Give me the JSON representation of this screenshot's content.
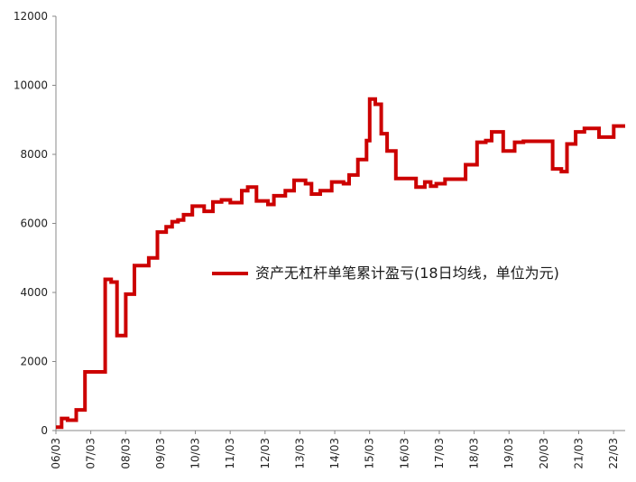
{
  "chart_data": {
    "type": "line",
    "title": "",
    "xlabel": "",
    "ylabel": "",
    "ylim": [
      0,
      12000
    ],
    "xlim": [
      2006.167,
      2022.5
    ],
    "yticks": [
      0,
      2000,
      4000,
      6000,
      8000,
      10000,
      12000
    ],
    "xticks": [
      {
        "label": "06/03",
        "x": 2006.167
      },
      {
        "label": "07/03",
        "x": 2007.167
      },
      {
        "label": "08/03",
        "x": 2008.167
      },
      {
        "label": "09/03",
        "x": 2009.167
      },
      {
        "label": "10/03",
        "x": 2010.167
      },
      {
        "label": "11/03",
        "x": 2011.167
      },
      {
        "label": "12/03",
        "x": 2012.167
      },
      {
        "label": "13/03",
        "x": 2013.167
      },
      {
        "label": "14/03",
        "x": 2014.167
      },
      {
        "label": "15/03",
        "x": 2015.167
      },
      {
        "label": "16/03",
        "x": 2016.167
      },
      {
        "label": "17/03",
        "x": 2017.167
      },
      {
        "label": "18/03",
        "x": 2018.167
      },
      {
        "label": "19/03",
        "x": 2019.167
      },
      {
        "label": "20/03",
        "x": 2020.167
      },
      {
        "label": "21/03",
        "x": 2021.167
      },
      {
        "label": "22/03",
        "x": 2022.167
      }
    ],
    "grid": false,
    "legend_position": "center-right",
    "series": [
      {
        "name": "资产无杠杆单笔累计盈亏(18日均线，单位为元)",
        "color": "#cc0000",
        "step": true,
        "points": [
          [
            2006.167,
            100
          ],
          [
            2006.33,
            350
          ],
          [
            2006.5,
            300
          ],
          [
            2006.75,
            600
          ],
          [
            2007.0,
            1700
          ],
          [
            2007.58,
            4380
          ],
          [
            2007.75,
            4300
          ],
          [
            2007.92,
            2750
          ],
          [
            2008.17,
            3950
          ],
          [
            2008.42,
            4780
          ],
          [
            2008.83,
            5000
          ],
          [
            2009.08,
            5750
          ],
          [
            2009.33,
            5900
          ],
          [
            2009.5,
            6050
          ],
          [
            2009.67,
            6100
          ],
          [
            2009.83,
            6250
          ],
          [
            2010.08,
            6500
          ],
          [
            2010.42,
            6350
          ],
          [
            2010.67,
            6620
          ],
          [
            2010.92,
            6680
          ],
          [
            2011.17,
            6600
          ],
          [
            2011.5,
            6950
          ],
          [
            2011.67,
            7050
          ],
          [
            2011.92,
            6650
          ],
          [
            2012.25,
            6550
          ],
          [
            2012.42,
            6800
          ],
          [
            2012.75,
            6950
          ],
          [
            2013.0,
            7250
          ],
          [
            2013.33,
            7150
          ],
          [
            2013.5,
            6850
          ],
          [
            2013.75,
            6950
          ],
          [
            2014.08,
            7200
          ],
          [
            2014.42,
            7150
          ],
          [
            2014.58,
            7400
          ],
          [
            2014.83,
            7850
          ],
          [
            2015.08,
            8400
          ],
          [
            2015.17,
            9600
          ],
          [
            2015.33,
            9450
          ],
          [
            2015.5,
            8600
          ],
          [
            2015.67,
            8100
          ],
          [
            2015.92,
            7300
          ],
          [
            2016.33,
            7300
          ],
          [
            2016.5,
            7050
          ],
          [
            2016.75,
            7200
          ],
          [
            2016.92,
            7080
          ],
          [
            2017.08,
            7150
          ],
          [
            2017.33,
            7280
          ],
          [
            2017.92,
            7700
          ],
          [
            2018.25,
            8350
          ],
          [
            2018.5,
            8400
          ],
          [
            2018.67,
            8650
          ],
          [
            2019.0,
            8100
          ],
          [
            2019.33,
            8350
          ],
          [
            2019.58,
            8380
          ],
          [
            2020.33,
            8380
          ],
          [
            2020.42,
            7580
          ],
          [
            2020.67,
            7500
          ],
          [
            2020.83,
            8300
          ],
          [
            2021.08,
            8650
          ],
          [
            2021.33,
            8750
          ],
          [
            2021.75,
            8500
          ],
          [
            2022.17,
            8820
          ],
          [
            2022.5,
            8820
          ]
        ]
      }
    ]
  }
}
